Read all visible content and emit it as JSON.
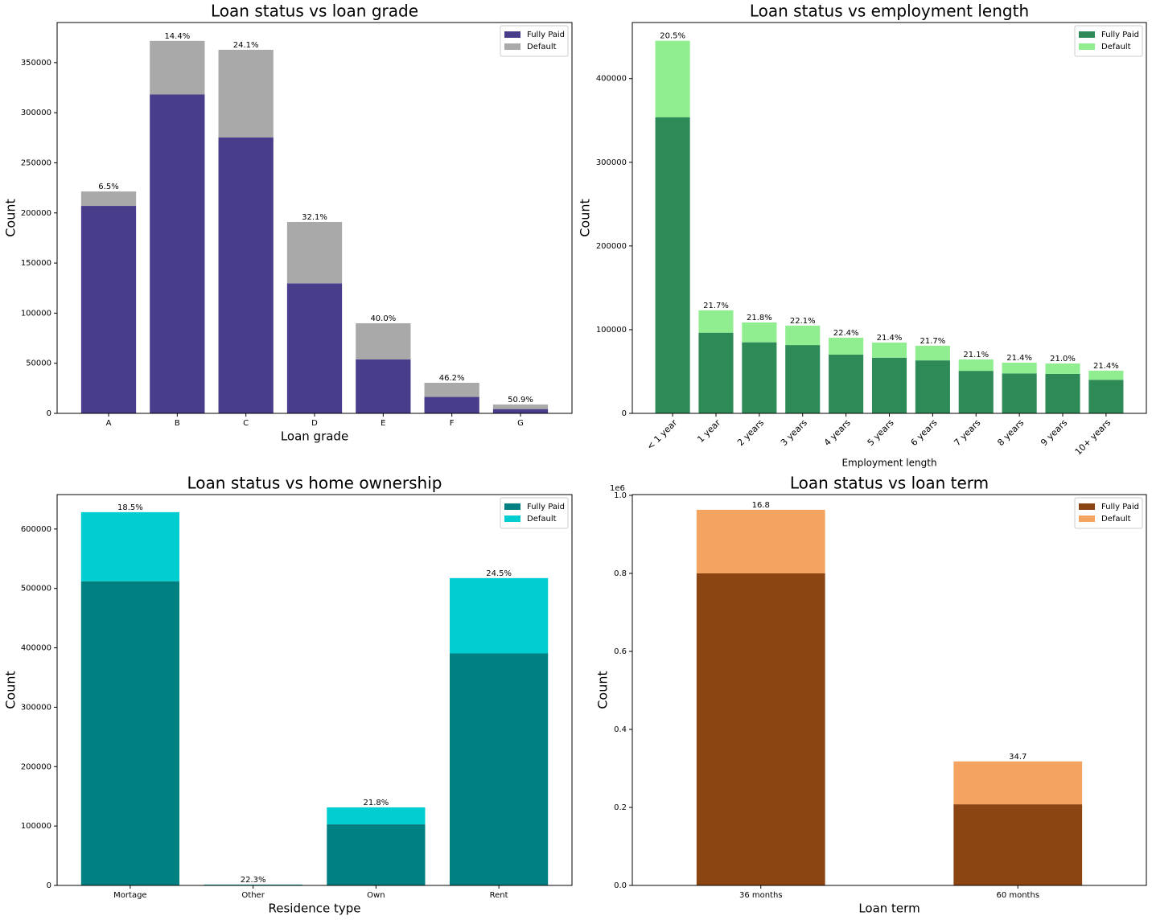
{
  "chart_data": [
    {
      "type": "bar",
      "stacked": true,
      "title": "Loan status vs loan grade",
      "xlabel": "Loan grade",
      "ylabel": "Count",
      "categories": [
        "A",
        "B",
        "C",
        "D",
        "E",
        "F",
        "G"
      ],
      "series": [
        {
          "name": "Fully Paid",
          "color": "#483d8b",
          "values": [
            207000,
            318200,
            275400,
            129700,
            53900,
            16400,
            4300
          ]
        },
        {
          "name": "Default",
          "color": "#a9a9a9",
          "values": [
            14400,
            53500,
            87400,
            61300,
            36000,
            14100,
            4500
          ]
        }
      ],
      "top_labels": [
        "6.5%",
        "14.4%",
        "24.1%",
        "32.1%",
        "40.0%",
        "46.2%",
        "50.9%"
      ],
      "ylim": [
        0,
        390000
      ],
      "yticks": [
        0,
        50000,
        100000,
        150000,
        200000,
        250000,
        300000,
        350000
      ],
      "legend": "upper right"
    },
    {
      "type": "bar",
      "stacked": true,
      "title": "Loan status vs employment length",
      "xlabel": "Employment length",
      "ylabel": "Count",
      "categories": [
        "< 1 year",
        "1 year",
        "2 years",
        "3 years",
        "4 years",
        "5 years",
        "6 years",
        "7 years",
        "8 years",
        "9 years",
        "10+ years"
      ],
      "series": [
        {
          "name": "Fully Paid",
          "color": "#2e8b57",
          "values": [
            353900,
            96400,
            84900,
            81600,
            70200,
            66500,
            63300,
            50800,
            47600,
            47100,
            40100
          ]
        },
        {
          "name": "Default",
          "color": "#90ee90",
          "values": [
            91300,
            26700,
            23700,
            23200,
            20200,
            18100,
            17500,
            13600,
            13000,
            12500,
            10900
          ]
        }
      ],
      "top_labels": [
        "20.5%",
        "21.7%",
        "21.8%",
        "22.1%",
        "22.4%",
        "21.4%",
        "21.7%",
        "21.1%",
        "21.4%",
        "21.0%",
        "21.4%"
      ],
      "xtick_rotation": 45,
      "ylim": [
        0,
        467000
      ],
      "yticks": [
        0,
        100000,
        200000,
        300000,
        400000
      ],
      "legend": "upper right"
    },
    {
      "type": "bar",
      "stacked": true,
      "title": "Loan status vs home ownership",
      "xlabel": "Residence type",
      "ylabel": "Count",
      "categories": [
        "Mortage",
        "Other",
        "Own",
        "Rent"
      ],
      "series": [
        {
          "name": "Fully Paid",
          "color": "#008080",
          "values": [
            512100,
            1170,
            102800,
            390600
          ]
        },
        {
          "name": "Default",
          "color": "#00ced1",
          "values": [
            116300,
            330,
            28600,
            126800
          ]
        }
      ],
      "top_labels": [
        "18.5%",
        "22.3%",
        "21.8%",
        "24.5%"
      ],
      "ylim": [
        0,
        658000
      ],
      "yticks": [
        0,
        100000,
        200000,
        300000,
        400000,
        500000,
        600000
      ],
      "legend": "upper right"
    },
    {
      "type": "bar",
      "stacked": true,
      "title": "Loan status vs loan term",
      "xlabel": "Loan term",
      "ylabel": "Count",
      "categories": [
        "36 months",
        "60 months"
      ],
      "series": [
        {
          "name": "Fully Paid",
          "color": "#8b4513",
          "values": [
            0.8,
            0.208
          ]
        },
        {
          "name": "Default",
          "color": "#f4a460",
          "values": [
            0.163,
            0.11
          ]
        }
      ],
      "top_labels": [
        "16.8",
        "34.7"
      ],
      "y_offset_label": "1e6",
      "ylim": [
        0,
        1.002
      ],
      "yticks": [
        {
          "value": 0,
          "label": "0.0"
        },
        {
          "value": 0.2,
          "label": "0.2"
        },
        {
          "value": 0.4,
          "label": "0.4"
        },
        {
          "value": 0.6,
          "label": "0.6"
        },
        {
          "value": 0.8,
          "label": "0.8"
        },
        {
          "value": 1,
          "label": "1.0"
        }
      ],
      "legend": "upper right"
    }
  ]
}
